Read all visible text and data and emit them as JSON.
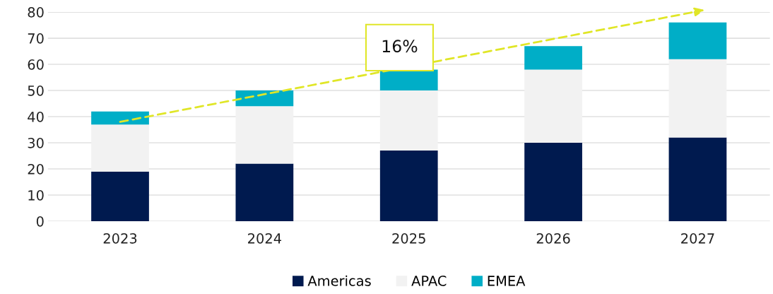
{
  "chart_data": {
    "type": "bar",
    "stacked": true,
    "categories": [
      "2023",
      "2024",
      "2025",
      "2026",
      "2027"
    ],
    "series": [
      {
        "name": "Americas",
        "color": "#001a4f",
        "values": [
          19,
          22,
          27,
          30,
          32
        ]
      },
      {
        "name": "APAC",
        "color": "#f2f2f2",
        "values": [
          18,
          22,
          23,
          28,
          30
        ]
      },
      {
        "name": "EMEA",
        "color": "#00aec7",
        "values": [
          5,
          6,
          8,
          9,
          14
        ]
      }
    ],
    "ylim": [
      0,
      80
    ],
    "yticks": [
      0,
      10,
      20,
      30,
      40,
      50,
      60,
      70,
      80
    ],
    "grid": "y",
    "legend": "bottom",
    "annotations": [
      "16%"
    ]
  }
}
